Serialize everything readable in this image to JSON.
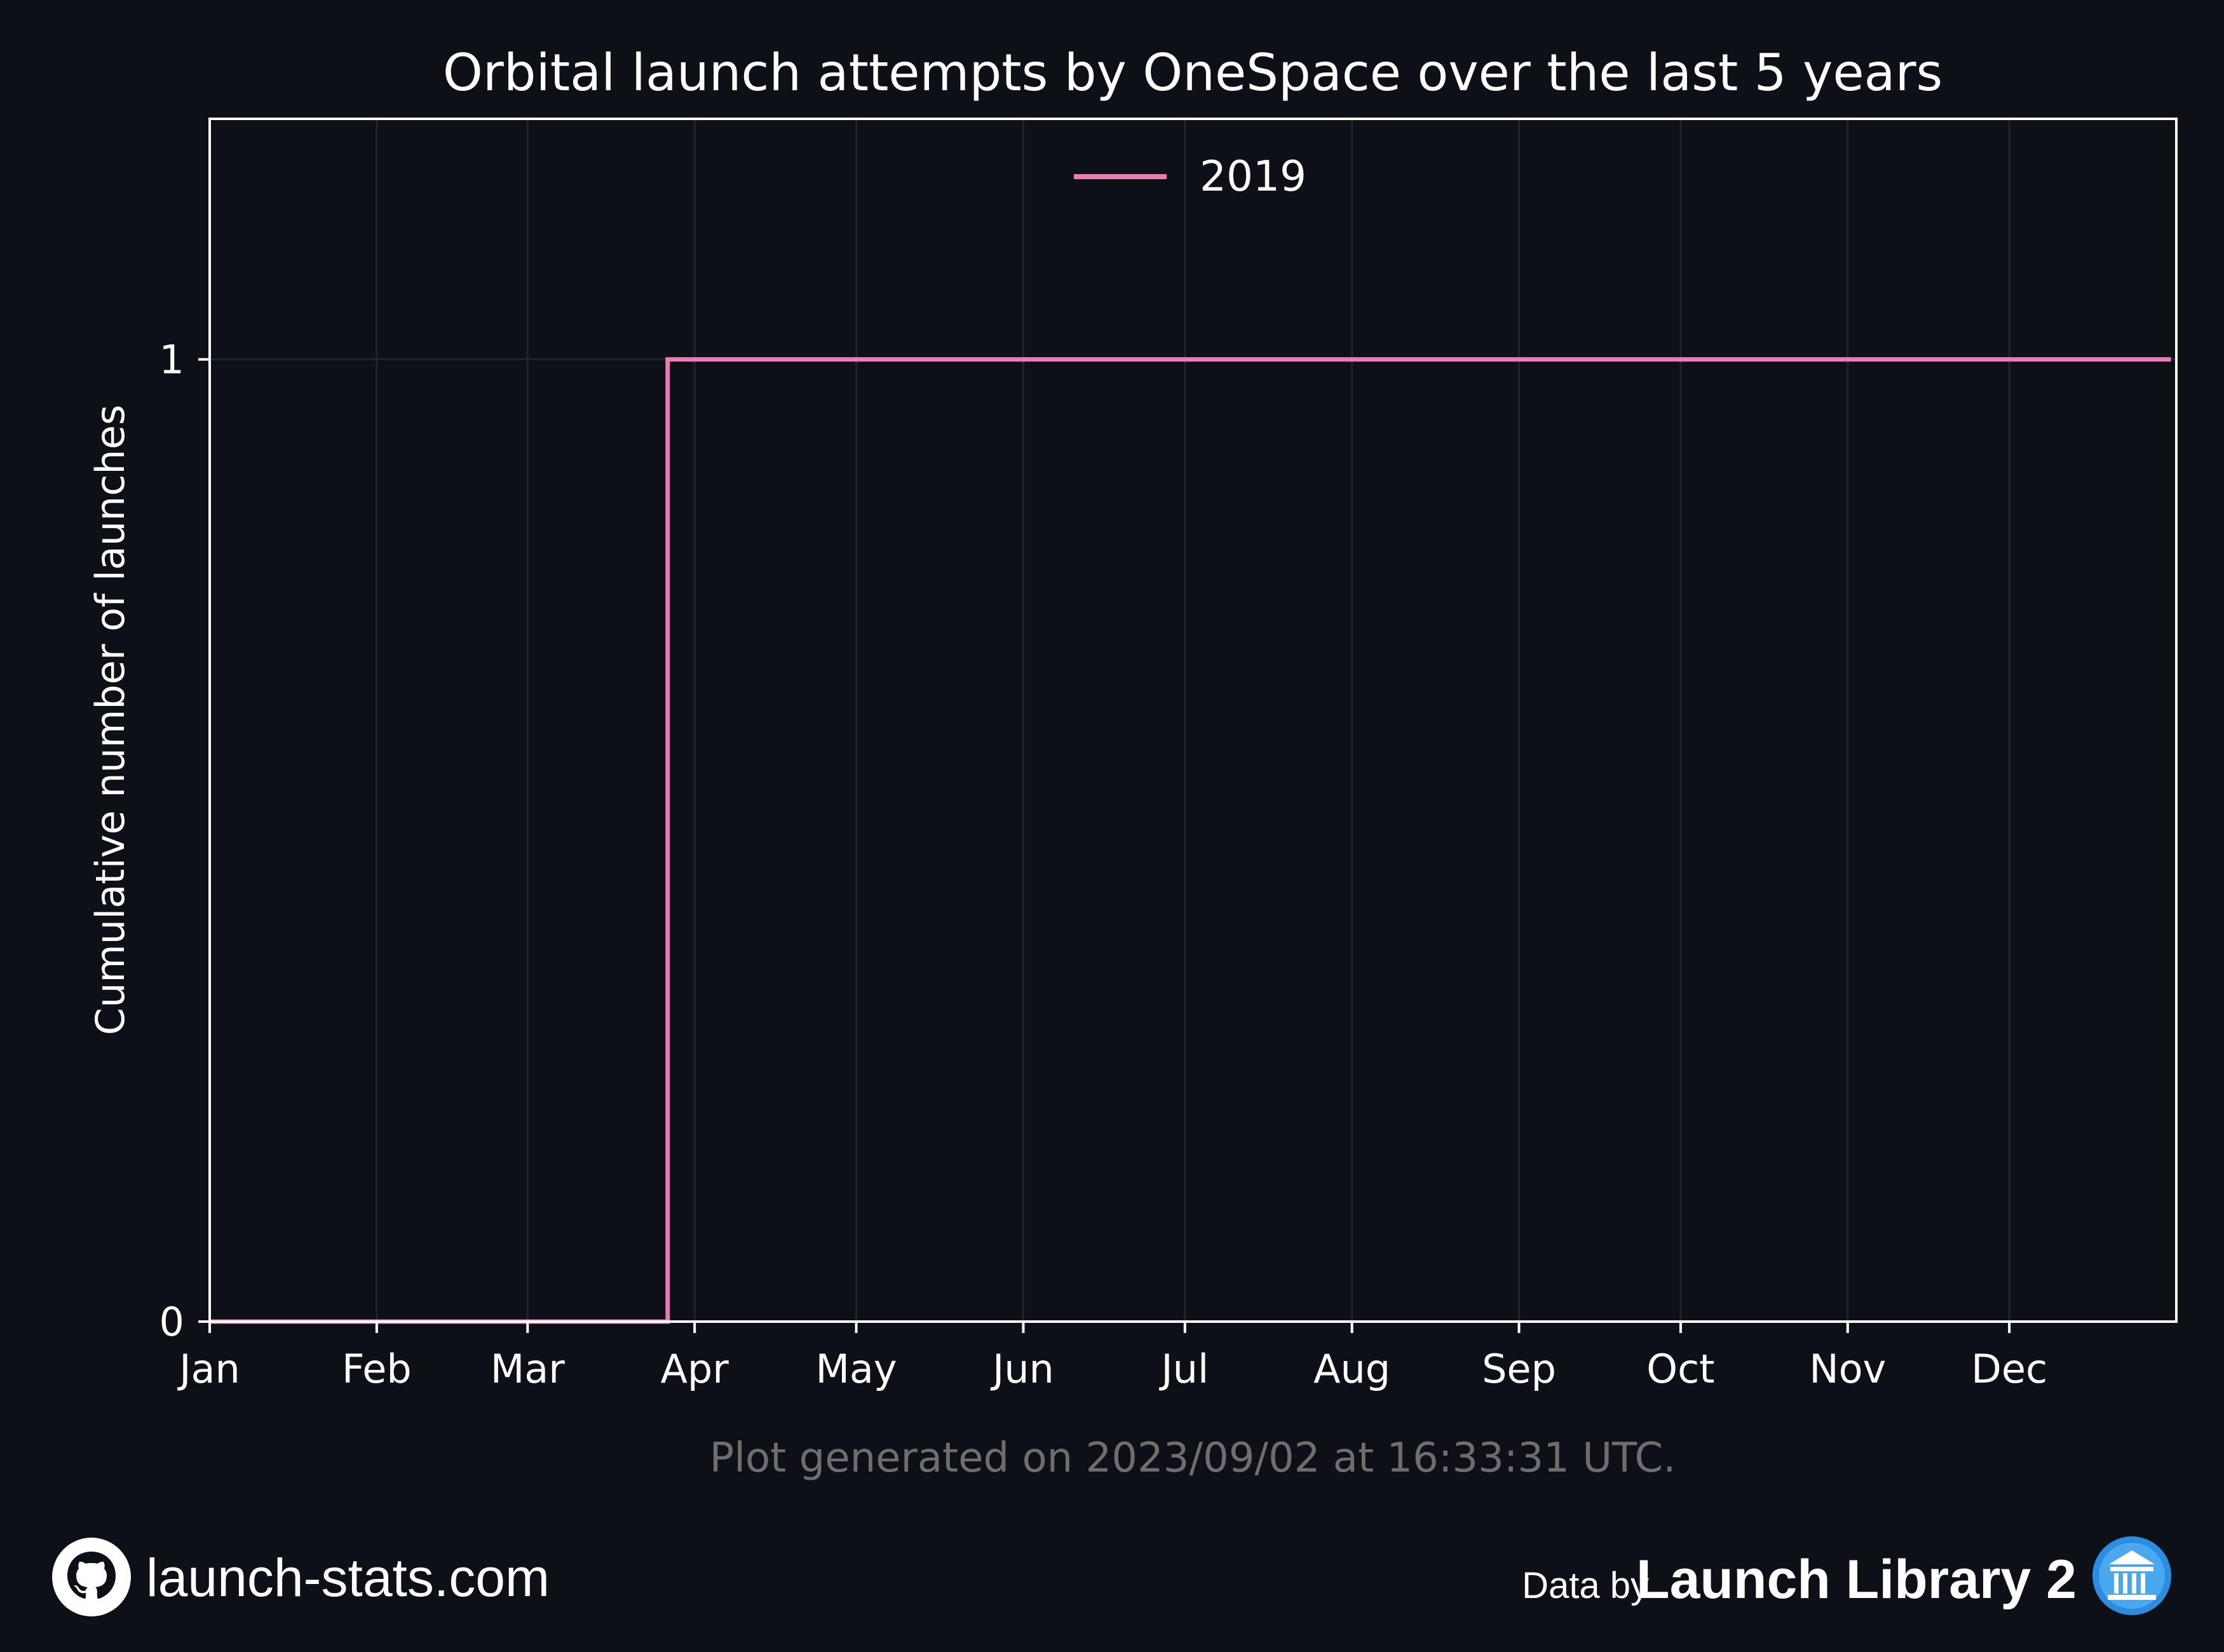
{
  "chart_data": {
    "type": "line",
    "title": "Orbital launch attempts by OneSpace over the last 5 years",
    "xlabel": "",
    "ylabel": "Cumulative number of launches",
    "x_tick_labels": [
      "Jan",
      "Feb",
      "Mar",
      "Apr",
      "May",
      "Jun",
      "Jul",
      "Aug",
      "Sep",
      "Oct",
      "Nov",
      "Dec"
    ],
    "y_tick_labels": [
      "0",
      "1"
    ],
    "ylim": [
      0,
      1.25
    ],
    "xlim": [
      "2019-01-01",
      "2019-12-31"
    ],
    "grid": true,
    "legend_position": "top-center",
    "series": [
      {
        "name": "2019",
        "color": "#e87cb3",
        "step": "post",
        "points": [
          {
            "x": "2019-01-01",
            "y": 0
          },
          {
            "x": "2019-03-27",
            "y": 1
          },
          {
            "x": "2019-12-31",
            "y": 1
          }
        ]
      }
    ]
  },
  "footer": {
    "generated": "Plot generated on 2023/09/02 at 16:33:31 UTC.",
    "site": "launch-stats.com",
    "credit_prefix": "Data by",
    "credit_name": "Launch Library 2"
  },
  "icons": {
    "github": "github-icon",
    "launch_library": "launch-library-logo-icon"
  },
  "colors": {
    "background": "#0d1017",
    "frame": "#ffffff",
    "grid": "#1f242d",
    "series": "#e87cb3"
  }
}
